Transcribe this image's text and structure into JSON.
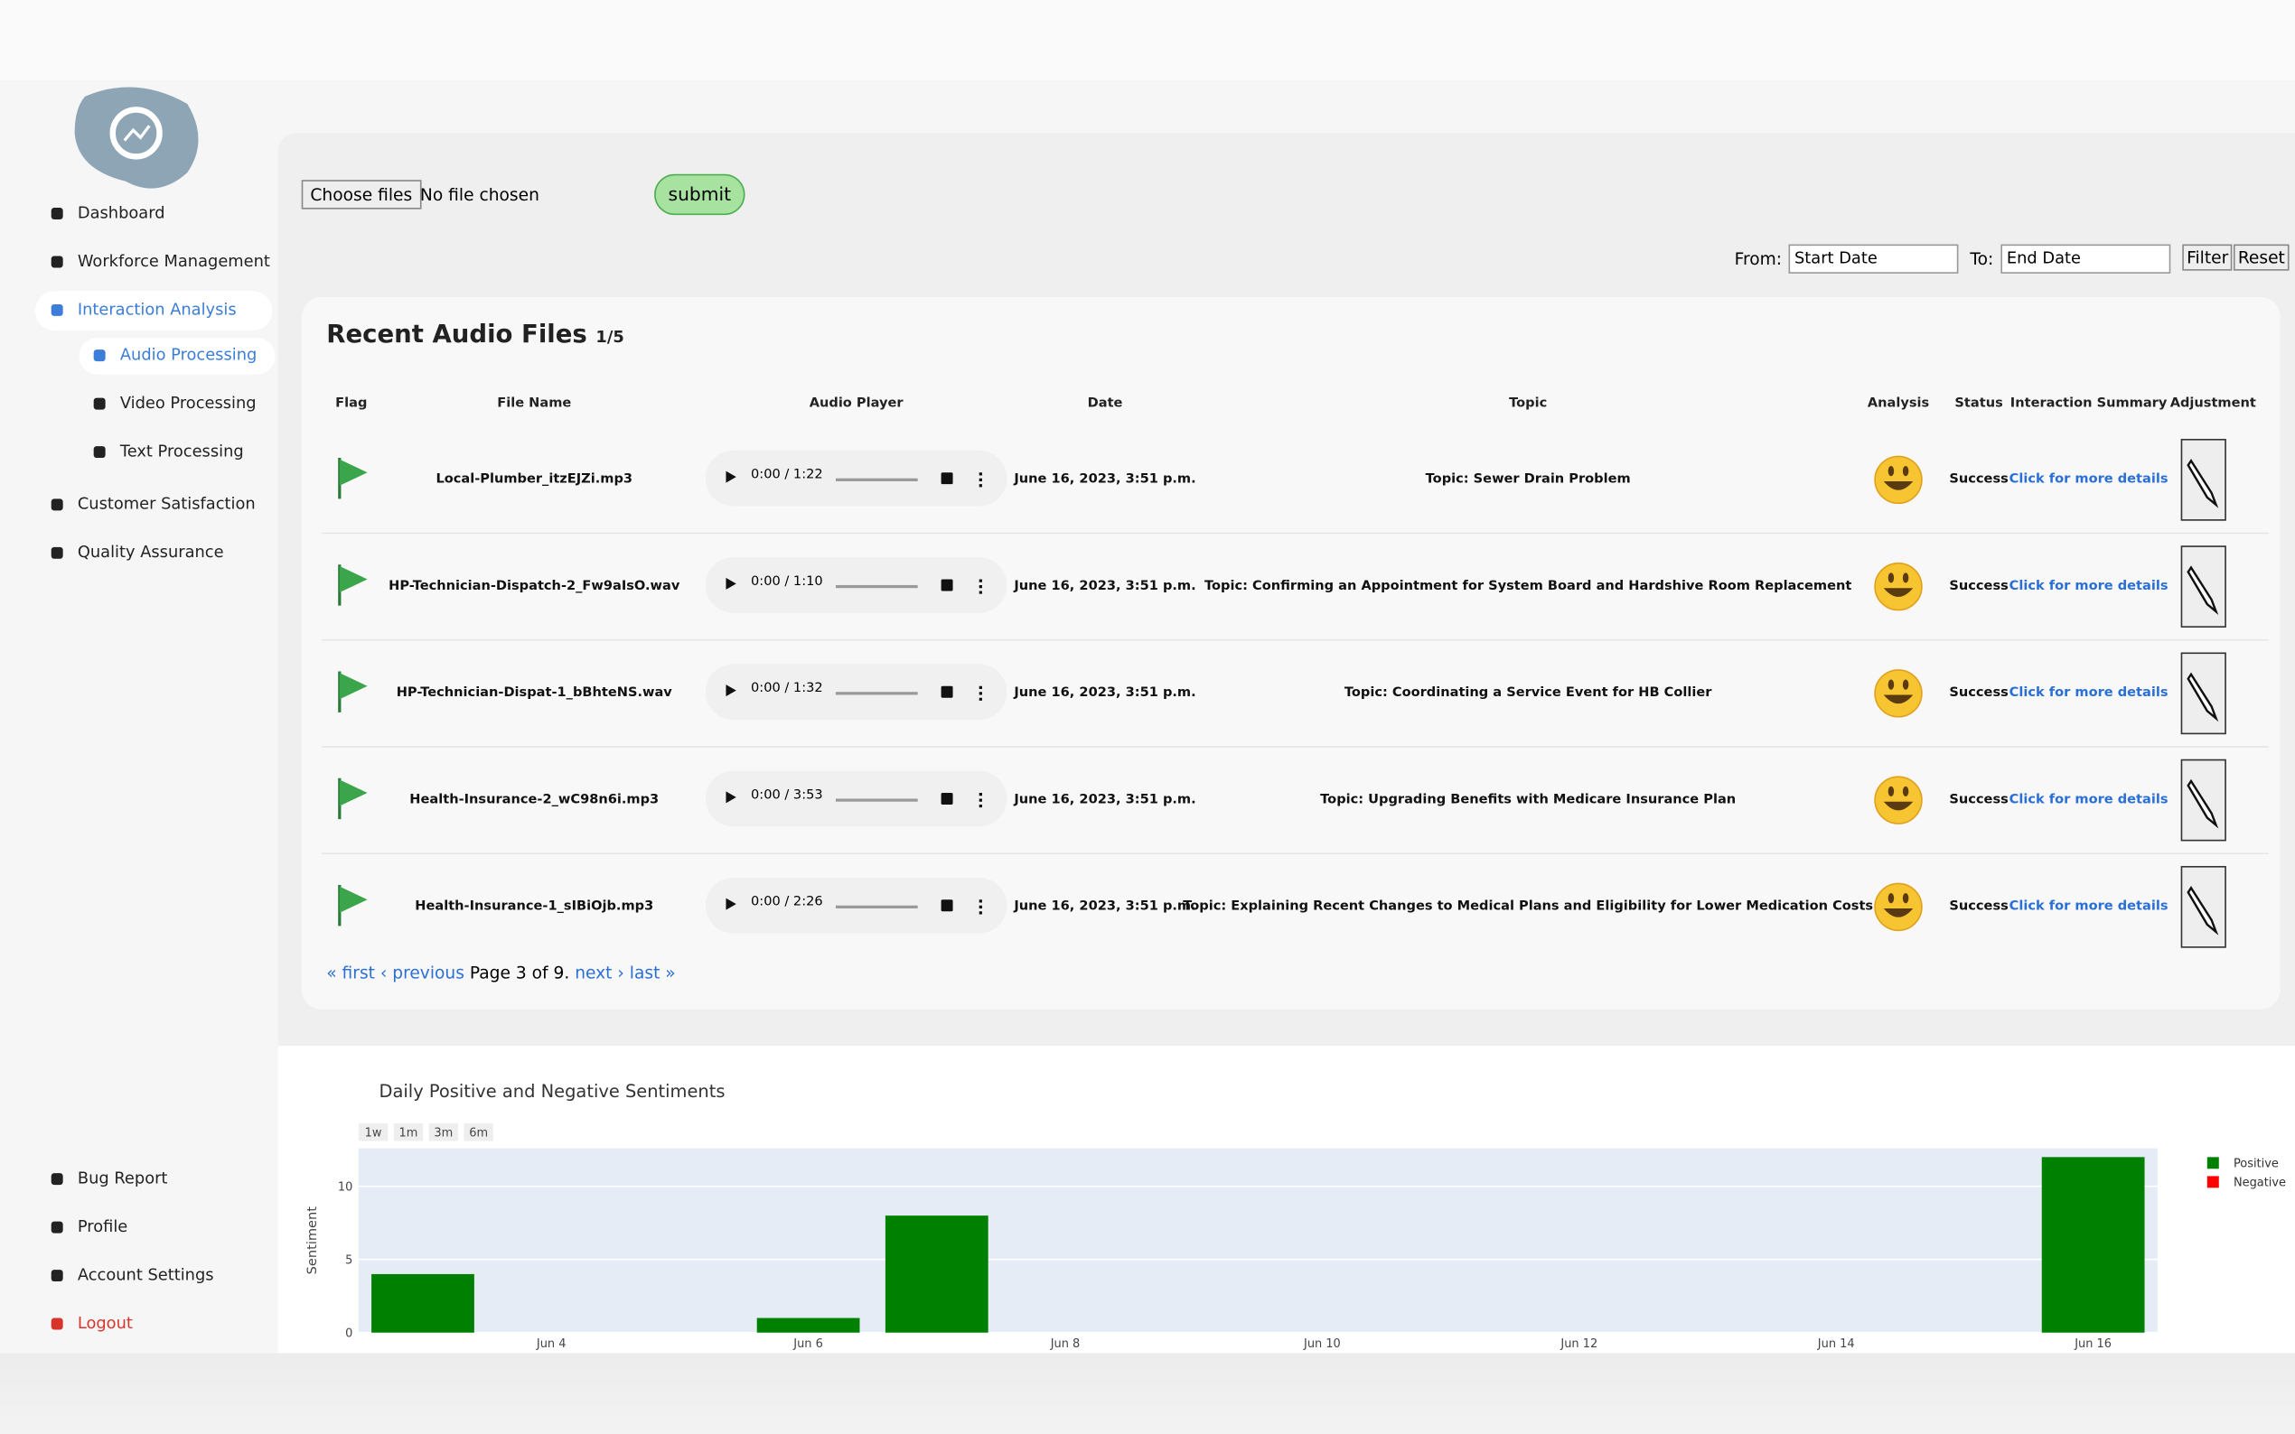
{
  "sidebar": {
    "nav": [
      "Dashboard",
      "Workforce Management",
      "Interaction Analysis"
    ],
    "subnav": [
      "Audio Processing",
      "Video Processing",
      "Text Processing"
    ],
    "nav2": [
      "Customer Satisfaction",
      "Quality Assurance"
    ],
    "bottom": [
      "Bug Report",
      "Profile",
      "Account Settings",
      "Logout"
    ]
  },
  "upload": {
    "choose": "Choose files",
    "status": "No file chosen",
    "submit": "submit"
  },
  "filter": {
    "from": "From:",
    "from_placeholder": "Start Date",
    "to": "To:",
    "to_placeholder": "End Date",
    "filter": "Filter",
    "reset": "Reset"
  },
  "table": {
    "title": "Recent Audio Files",
    "count": "1/5",
    "headers": [
      "Flag",
      "File Name",
      "Audio Player",
      "Date",
      "Topic",
      "Analysis",
      "Status",
      "Interaction Summary",
      "Adjustment"
    ],
    "rows": [
      [
        "Local-Plumber_itzEJZi.mp3",
        "0:00 / 1:22",
        "June 16, 2023, 3:51 p.m.",
        "Topic: Sewer Drain Problem",
        "Success",
        "Click for more details"
      ],
      [
        "HP-Technician-Dispatch-2_Fw9aIsO.wav",
        "0:00 / 1:10",
        "June 16, 2023, 3:51 p.m.",
        "Topic: Confirming an Appointment for System Board and Hardshive Room Replacement",
        "Success",
        "Click for more details"
      ],
      [
        "HP-Technician-Dispat-1_bBhteNS.wav",
        "0:00 / 1:32",
        "June 16, 2023, 3:51 p.m.",
        "Topic: Coordinating a Service Event for HB Collier",
        "Success",
        "Click for more details"
      ],
      [
        "Health-Insurance-2_wC98n6i.mp3",
        "0:00 / 3:53",
        "June 16, 2023, 3:51 p.m.",
        "Topic: Upgrading Benefits with Medicare Insurance Plan",
        "Success",
        "Click for more details"
      ],
      [
        "Health-Insurance-1_sIBiOjb.mp3",
        "0:00 / 2:26",
        "June 16, 2023, 3:51 p.m.",
        "Topic: Explaining Recent Changes to Medical Plans and Eligibility for Lower Medication Costs",
        "Success",
        "Click for more details"
      ]
    ]
  },
  "pagination": {
    "first": "« first",
    "previous": "‹ previous",
    "page": "Page 3 of 9.",
    "next": "next ›",
    "last": "last »"
  },
  "chart_data": {
    "type": "bar",
    "title": "Daily Positive and Negative Sentiments",
    "ylabel": "Sentiment",
    "range_buttons": [
      "1w",
      "1m",
      "3m",
      "6m"
    ],
    "x": [
      "Jun 3",
      "Jun 6",
      "Jun 7",
      "Jun 16"
    ],
    "series": [
      {
        "name": "Positive",
        "color": "#008000",
        "values": [
          4,
          1,
          8,
          12
        ]
      },
      {
        "name": "Negative",
        "color": "#ff0000",
        "values": [
          0,
          0,
          0,
          0
        ]
      }
    ],
    "ylim": [
      0,
      12.6
    ],
    "yticks": [
      0,
      5,
      10
    ],
    "xticks": [
      "Jun 4",
      "Jun 6",
      "Jun 8",
      "Jun 10",
      "Jun 12",
      "Jun 14",
      "Jun 16"
    ],
    "grid": true
  }
}
